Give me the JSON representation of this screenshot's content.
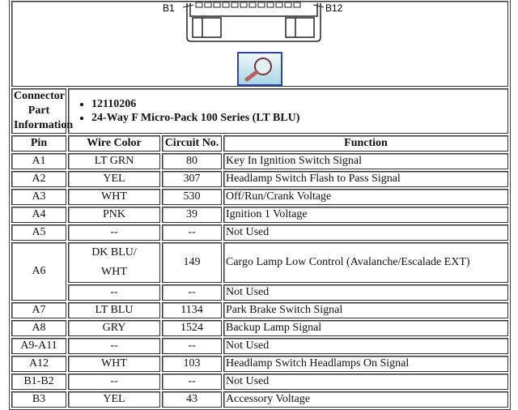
{
  "diagram": {
    "label_left": "B1",
    "label_right": "B12",
    "zoom_icon": "magnifier-icon"
  },
  "connector": {
    "label": "Connector Part Information",
    "items": [
      "12110206",
      "24-Way F Micro-Pack 100 Series (LT BLU)"
    ]
  },
  "headers": [
    "Pin",
    "Wire Color",
    "Circuit No.",
    "Function"
  ],
  "rows": [
    {
      "pin": "A1",
      "wire": "LT GRN",
      "circuit": "80",
      "function": "Key In Ignition Switch Signal"
    },
    {
      "pin": "A2",
      "wire": "YEL",
      "circuit": "307",
      "function": "Headlamp Switch Flash to Pass Signal"
    },
    {
      "pin": "A3",
      "wire": "WHT",
      "circuit": "530",
      "function": "Off/Run/Crank Voltage"
    },
    {
      "pin": "A4",
      "wire": "PNK",
      "circuit": "39",
      "function": "Ignition 1 Voltage"
    },
    {
      "pin": "A5",
      "wire": "--",
      "circuit": "--",
      "function": "Not Used"
    },
    {
      "pin": "A6",
      "wire": "DK BLU/",
      "wire2": "WHT",
      "circuit": "149",
      "function": "Cargo Lamp Low Control (Avalanche/Escalade EXT)"
    },
    {
      "wire": "--",
      "circuit": "--",
      "function": "Not Used"
    },
    {
      "pin": "A7",
      "wire": "LT BLU",
      "circuit": "1134",
      "function": "Park Brake Switch Signal"
    },
    {
      "pin": "A8",
      "wire": "GRY",
      "circuit": "1524",
      "function": "Backup Lamp Signal"
    },
    {
      "pin": "A9-A11",
      "wire": "--",
      "circuit": "--",
      "function": "Not Used"
    },
    {
      "pin": "A12",
      "wire": "WHT",
      "circuit": "103",
      "function": "Headlamp Switch Headlamps On Signal"
    },
    {
      "pin": "B1-B2",
      "wire": "--",
      "circuit": "--",
      "function": "Not Used"
    },
    {
      "pin": "B3",
      "wire": "YEL",
      "circuit": "43",
      "function": "Accessory Voltage"
    }
  ]
}
